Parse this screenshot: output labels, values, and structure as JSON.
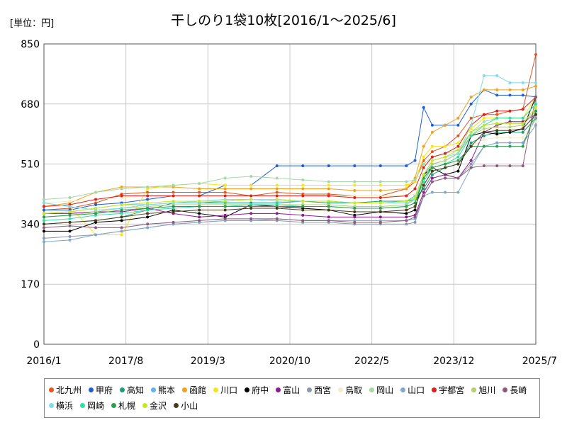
{
  "chart_data": {
    "type": "line",
    "title": "干しのり1袋10枚[2016/1～2025/6]",
    "unit_label": "[単位：円]",
    "xlabel": "",
    "ylabel": "",
    "ylim": [
      0,
      850
    ],
    "yticks": [
      "0",
      "170",
      "340",
      "510",
      "680",
      "850"
    ],
    "xticks": [
      "2016/1",
      "2017/8",
      "2019/3",
      "2020/10",
      "2022/5",
      "2023/12",
      "2025/7"
    ],
    "grid": true,
    "legend_position": "bottom",
    "x_months": [
      0,
      6,
      12,
      18,
      24,
      30,
      36,
      42,
      48,
      54,
      60,
      66,
      72,
      78,
      84,
      86,
      88,
      90,
      93,
      96,
      99,
      102,
      105,
      108,
      111,
      114
    ],
    "series": [
      {
        "name": "北九州",
        "color": "#e8531f",
        "values": [
          380,
          385,
          400,
          425,
          430,
          430,
          430,
          430,
          420,
          430,
          425,
          425,
          420,
          420,
          440,
          460,
          520,
          545,
          560,
          590,
          640,
          650,
          650,
          660,
          665,
          820
        ]
      },
      {
        "name": "甲府",
        "color": "#1f5fd6",
        "values": [
          380,
          380,
          395,
          400,
          410,
          420,
          420,
          450,
          450,
          505,
          505,
          505,
          505,
          505,
          505,
          520,
          670,
          620,
          620,
          620,
          680,
          720,
          705,
          705,
          705,
          700
        ]
      },
      {
        "name": "高知",
        "color": "#1a9e77",
        "values": [
          340,
          345,
          350,
          360,
          380,
          400,
          400,
          400,
          400,
          400,
          405,
          400,
          400,
          405,
          405,
          410,
          440,
          480,
          500,
          510,
          570,
          590,
          600,
          600,
          600,
          640
        ]
      },
      {
        "name": "熊本",
        "color": "#5cb8e6",
        "values": [
          370,
          375,
          385,
          395,
          395,
          400,
          400,
          405,
          410,
          410,
          405,
          405,
          400,
          400,
          405,
          420,
          480,
          510,
          520,
          540,
          600,
          620,
          625,
          625,
          625,
          660
        ]
      },
      {
        "name": "函館",
        "color": "#f0a21a",
        "values": [
          390,
          400,
          430,
          445,
          445,
          445,
          440,
          440,
          440,
          440,
          440,
          440,
          435,
          435,
          440,
          470,
          560,
          600,
          620,
          640,
          700,
          720,
          720,
          720,
          720,
          730
        ]
      },
      {
        "name": "川口",
        "color": "#f5e51a",
        "values": [
          400,
          390,
          310,
          310,
          440,
          450,
          455,
          450,
          450,
          450,
          450,
          450,
          450,
          450,
          450,
          460,
          530,
          560,
          560,
          570,
          610,
          640,
          640,
          640,
          640,
          700
        ]
      },
      {
        "name": "府中",
        "color": "#000000",
        "values": [
          320,
          320,
          345,
          350,
          360,
          380,
          370,
          360,
          395,
          390,
          385,
          380,
          365,
          375,
          370,
          380,
          480,
          500,
          480,
          490,
          590,
          600,
          595,
          600,
          610,
          700
        ]
      },
      {
        "name": "富山",
        "color": "#8e1a8e",
        "values": [
          370,
          370,
          375,
          375,
          385,
          370,
          360,
          365,
          370,
          370,
          365,
          360,
          360,
          360,
          360,
          365,
          430,
          470,
          480,
          470,
          520,
          600,
          620,
          630,
          630,
          650
        ]
      },
      {
        "name": "西宮",
        "color": "#8899aa",
        "values": [
          300,
          305,
          310,
          320,
          330,
          340,
          345,
          350,
          350,
          350,
          345,
          345,
          340,
          340,
          340,
          345,
          420,
          460,
          470,
          470,
          510,
          560,
          570,
          570,
          570,
          640
        ]
      },
      {
        "name": "鳥取",
        "color": "#f2edc8",
        "values": [
          400,
          405,
          410,
          415,
          420,
          420,
          420,
          420,
          420,
          420,
          420,
          420,
          420,
          420,
          420,
          425,
          470,
          500,
          510,
          520,
          560,
          580,
          585,
          585,
          585,
          630
        ]
      },
      {
        "name": "岡山",
        "color": "#a6d8a6",
        "values": [
          410,
          415,
          430,
          440,
          445,
          450,
          455,
          470,
          475,
          470,
          465,
          460,
          460,
          460,
          460,
          465,
          510,
          530,
          540,
          550,
          600,
          630,
          640,
          640,
          640,
          680
        ]
      },
      {
        "name": "山口",
        "color": "#7fa8cc",
        "values": [
          290,
          295,
          310,
          320,
          330,
          340,
          345,
          350,
          350,
          355,
          350,
          350,
          350,
          350,
          350,
          355,
          420,
          430,
          430,
          430,
          500,
          560,
          570,
          570,
          570,
          620
        ]
      },
      {
        "name": "宇都宮",
        "color": "#e0201a",
        "values": [
          390,
          395,
          410,
          420,
          420,
          420,
          420,
          420,
          420,
          420,
          420,
          420,
          415,
          415,
          420,
          440,
          500,
          530,
          540,
          560,
          620,
          650,
          660,
          660,
          665,
          700
        ]
      },
      {
        "name": "旭川",
        "color": "#b5cf6b",
        "values": [
          360,
          365,
          375,
          385,
          390,
          395,
          395,
          395,
          395,
          395,
          395,
          395,
          390,
          390,
          395,
          410,
          470,
          510,
          520,
          540,
          590,
          610,
          615,
          615,
          620,
          660
        ]
      },
      {
        "name": "長崎",
        "color": "#8c5a7a",
        "values": [
          330,
          335,
          330,
          330,
          340,
          345,
          350,
          355,
          355,
          355,
          350,
          350,
          345,
          345,
          350,
          360,
          420,
          460,
          470,
          470,
          500,
          505,
          505,
          505,
          505,
          700
        ]
      },
      {
        "name": "横浜",
        "color": "#7fdce8",
        "values": [
          400,
          390,
          380,
          385,
          395,
          400,
          405,
          410,
          410,
          405,
          405,
          405,
          400,
          400,
          400,
          410,
          480,
          520,
          530,
          540,
          620,
          760,
          760,
          740,
          740,
          740
        ]
      },
      {
        "name": "岡崎",
        "color": "#2ee0a6",
        "values": [
          350,
          355,
          365,
          370,
          380,
          385,
          390,
          390,
          395,
          395,
          390,
          390,
          385,
          385,
          390,
          400,
          460,
          500,
          510,
          530,
          590,
          620,
          640,
          640,
          640,
          680
        ]
      },
      {
        "name": "札幌",
        "color": "#2a9e4a",
        "values": [
          360,
          365,
          370,
          380,
          385,
          390,
          390,
          390,
          390,
          390,
          390,
          390,
          385,
          385,
          390,
          400,
          470,
          500,
          510,
          520,
          560,
          560,
          560,
          560,
          560,
          660
        ]
      },
      {
        "name": "金沢",
        "color": "#c6ea20",
        "values": [
          370,
          375,
          385,
          395,
          400,
          405,
          405,
          405,
          410,
          410,
          405,
          405,
          400,
          400,
          405,
          415,
          480,
          520,
          530,
          550,
          600,
          620,
          625,
          625,
          625,
          670
        ]
      },
      {
        "name": "小山",
        "color": "#4a3a1a",
        "values": [
          340,
          345,
          350,
          360,
          370,
          375,
          380,
          380,
          385,
          385,
          380,
          380,
          375,
          375,
          380,
          390,
          450,
          490,
          500,
          510,
          560,
          600,
          605,
          605,
          610,
          650
        ]
      }
    ]
  }
}
